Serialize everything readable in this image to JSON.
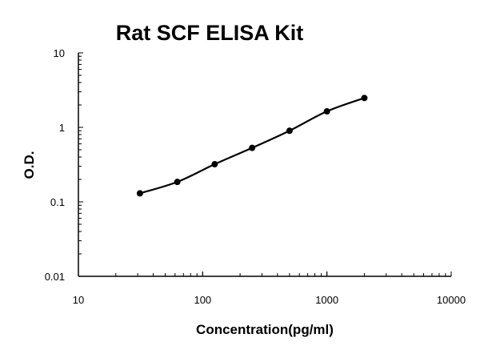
{
  "chart_data": {
    "type": "line",
    "title": "Rat SCF ELISA Kit",
    "xlabel": "Concentration(pg/ml)",
    "ylabel": "O.D.",
    "xscale": "log",
    "yscale": "log",
    "xlim": [
      10,
      10000
    ],
    "ylim": [
      0.01,
      10
    ],
    "xticks": [
      "10",
      "100",
      "1000",
      "10000"
    ],
    "yticks": [
      "0.01",
      "0.1",
      "1",
      "10"
    ],
    "grid": false,
    "legend": "none",
    "series": [
      {
        "x": [
          31.25,
          62.5,
          125,
          250,
          500,
          1000,
          2000
        ],
        "y": [
          0.13,
          0.185,
          0.32,
          0.53,
          0.9,
          1.64,
          2.48
        ],
        "marker": "circle",
        "line": "smooth",
        "color": "#000000"
      }
    ]
  }
}
